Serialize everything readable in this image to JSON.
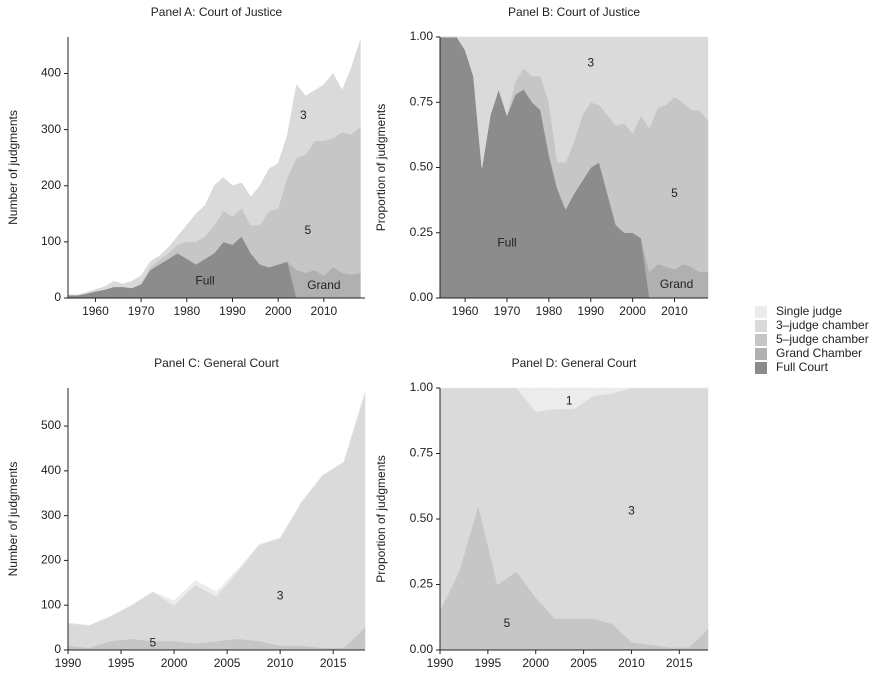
{
  "chart_data": [
    {
      "type": "stacked-area",
      "title": "Panel A: Court of Justice",
      "ylabel": "Number of judgments",
      "x": [
        1954,
        1956,
        1958,
        1960,
        1962,
        1964,
        1966,
        1968,
        1970,
        1972,
        1974,
        1976,
        1978,
        1980,
        1982,
        1984,
        1986,
        1988,
        1990,
        1992,
        1994,
        1996,
        1998,
        2000,
        2002,
        2004,
        2006,
        2008,
        2010,
        2012,
        2014,
        2016,
        2018
      ],
      "series": [
        {
          "color": "#8c8c8c",
          "values": [
            5,
            5,
            8,
            12,
            15,
            20,
            20,
            18,
            25,
            50,
            60,
            70,
            80,
            70,
            60,
            70,
            80,
            100,
            95,
            110,
            80,
            60,
            55,
            60,
            65,
            0,
            0,
            0,
            0,
            0,
            0,
            0,
            0
          ]
        },
        {
          "color": "#b0b0b0",
          "values": [
            0,
            0,
            0,
            0,
            0,
            0,
            0,
            0,
            0,
            0,
            0,
            0,
            0,
            0,
            0,
            0,
            0,
            0,
            0,
            0,
            0,
            0,
            0,
            0,
            0,
            50,
            45,
            50,
            40,
            55,
            45,
            42,
            45
          ]
        },
        {
          "color": "#c6c6c6",
          "values": [
            0,
            0,
            0,
            0,
            0,
            0,
            0,
            0,
            0,
            5,
            8,
            10,
            15,
            30,
            40,
            40,
            50,
            55,
            50,
            50,
            50,
            70,
            100,
            100,
            150,
            200,
            210,
            230,
            240,
            230,
            250,
            250,
            260
          ]
        },
        {
          "color": "#dadada",
          "values": [
            0,
            0,
            2,
            3,
            5,
            10,
            5,
            12,
            15,
            10,
            7,
            10,
            15,
            30,
            50,
            55,
            70,
            60,
            55,
            45,
            50,
            70,
            75,
            80,
            75,
            130,
            105,
            90,
            100,
            115,
            75,
            118,
            155
          ]
        }
      ],
      "xlim": [
        1954,
        2019
      ],
      "ylim": [
        0,
        465
      ],
      "xticks": [
        1960,
        1970,
        1980,
        1990,
        2000,
        2010
      ],
      "yticks": [
        0,
        100,
        200,
        300,
        400
      ],
      "annotations": [
        "3",
        "5",
        "Full",
        "Grand"
      ]
    },
    {
      "type": "stacked-area",
      "title": "Panel B: Court of Justice",
      "ylabel": "Proportion of judgments",
      "x": [
        1954,
        1956,
        1958,
        1960,
        1962,
        1964,
        1966,
        1968,
        1970,
        1972,
        1974,
        1976,
        1978,
        1980,
        1982,
        1984,
        1986,
        1988,
        1990,
        1992,
        1994,
        1996,
        1998,
        2000,
        2002,
        2004,
        2006,
        2008,
        2010,
        2012,
        2014,
        2016,
        2018
      ],
      "series": [
        {
          "color": "#8c8c8c",
          "values": [
            1,
            1,
            1,
            0.95,
            0.85,
            0.5,
            0.7,
            0.8,
            0.7,
            0.78,
            0.8,
            0.75,
            0.72,
            0.55,
            0.42,
            0.34,
            0.4,
            0.45,
            0.5,
            0.52,
            0.4,
            0.28,
            0.25,
            0.25,
            0.23,
            0,
            0,
            0,
            0,
            0,
            0,
            0,
            0
          ]
        },
        {
          "color": "#b0b0b0",
          "values": [
            0,
            0,
            0,
            0,
            0,
            0,
            0,
            0,
            0,
            0,
            0,
            0,
            0,
            0,
            0,
            0,
            0,
            0,
            0,
            0,
            0,
            0,
            0,
            0,
            0,
            0.1,
            0.13,
            0.12,
            0.11,
            0.13,
            0.12,
            0.1,
            0.1
          ]
        },
        {
          "color": "#c6c6c6",
          "values": [
            0,
            0,
            0,
            0,
            0,
            0,
            0,
            0,
            0,
            0.05,
            0.08,
            0.1,
            0.13,
            0.2,
            0.1,
            0.18,
            0.2,
            0.25,
            0.25,
            0.22,
            0.3,
            0.38,
            0.42,
            0.38,
            0.47,
            0.55,
            0.6,
            0.62,
            0.66,
            0.62,
            0.6,
            0.62,
            0.58
          ]
        },
        {
          "color": "#dadada",
          "values": [
            0,
            0,
            0,
            0.05,
            0.15,
            0.5,
            0.3,
            0.2,
            0.3,
            0.17,
            0.12,
            0.15,
            0.15,
            0.25,
            0.48,
            0.48,
            0.4,
            0.3,
            0.25,
            0.26,
            0.3,
            0.34,
            0.33,
            0.37,
            0.3,
            0.35,
            0.27,
            0.26,
            0.23,
            0.25,
            0.28,
            0.28,
            0.32
          ]
        }
      ],
      "xlim": [
        1954,
        2018
      ],
      "ylim": [
        0,
        1
      ],
      "xticks": [
        1960,
        1970,
        1980,
        1990,
        2000,
        2010
      ],
      "yticks": [
        {
          "value": 0,
          "label": "0.00"
        },
        {
          "value": 0.25,
          "label": "0.25"
        },
        {
          "value": 0.5,
          "label": "0.50"
        },
        {
          "value": 0.75,
          "label": "0.75"
        },
        {
          "value": 1,
          "label": "1.00"
        }
      ],
      "annotations": [
        "3",
        "5",
        "Full",
        "Grand"
      ]
    },
    {
      "type": "stacked-area",
      "title": "Panel C: General Court",
      "ylabel": "Number of judgments",
      "x": [
        1990,
        1992,
        1994,
        1996,
        1998,
        2000,
        2002,
        2004,
        2006,
        2008,
        2010,
        2012,
        2014,
        2016,
        2018
      ],
      "series": [
        {
          "color": "#c6c6c6",
          "values": [
            10,
            5,
            20,
            25,
            20,
            20,
            15,
            20,
            25,
            20,
            10,
            10,
            5,
            5,
            50
          ]
        },
        {
          "color": "#dadada",
          "values": [
            50,
            50,
            55,
            75,
            110,
            80,
            130,
            100,
            150,
            215,
            240,
            320,
            385,
            415,
            525
          ]
        },
        {
          "color": "#ececec",
          "values": [
            0,
            0,
            0,
            0,
            0,
            10,
            10,
            10,
            5,
            0,
            0,
            0,
            0,
            0,
            0
          ]
        }
      ],
      "xlim": [
        1990,
        2018
      ],
      "ylim": [
        0,
        585
      ],
      "xticks": [
        1990,
        1995,
        2000,
        2005,
        2010,
        2015
      ],
      "yticks": [
        0,
        100,
        200,
        300,
        400,
        500
      ],
      "annotations": [
        "3",
        "5"
      ]
    },
    {
      "type": "stacked-area",
      "title": "Panel D: General Court",
      "ylabel": "Proportion of judgments",
      "x": [
        1990,
        1992,
        1994,
        1996,
        1998,
        2000,
        2002,
        2004,
        2006,
        2008,
        2010,
        2012,
        2014,
        2016,
        2018
      ],
      "series": [
        {
          "color": "#c6c6c6",
          "values": [
            0.15,
            0.3,
            0.55,
            0.25,
            0.3,
            0.2,
            0.12,
            0.12,
            0.12,
            0.1,
            0.03,
            0.02,
            0.01,
            0.01,
            0.08
          ]
        },
        {
          "color": "#dadada",
          "values": [
            0.85,
            0.7,
            0.45,
            0.75,
            0.7,
            0.71,
            0.8,
            0.8,
            0.85,
            0.88,
            0.97,
            0.98,
            0.99,
            0.99,
            0.92
          ]
        },
        {
          "color": "#ececec",
          "values": [
            0,
            0,
            0,
            0,
            0,
            0.09,
            0.08,
            0.08,
            0.03,
            0.02,
            0,
            0,
            0,
            0,
            0
          ]
        }
      ],
      "xlim": [
        1990,
        2018
      ],
      "ylim": [
        0,
        1
      ],
      "xticks": [
        1990,
        1995,
        2000,
        2005,
        2010,
        2015
      ],
      "yticks": [
        {
          "value": 0,
          "label": "0.00"
        },
        {
          "value": 0.25,
          "label": "0.25"
        },
        {
          "value": 0.5,
          "label": "0.50"
        },
        {
          "value": 0.75,
          "label": "0.75"
        },
        {
          "value": 1,
          "label": "1.00"
        }
      ],
      "annotations": [
        "1",
        "3",
        "5"
      ]
    }
  ],
  "legend": [
    {
      "name": "Single judge",
      "color": "#ececec"
    },
    {
      "name": "3–judge chamber",
      "color": "#dadada"
    },
    {
      "name": "5–judge chamber",
      "color": "#c6c6c6"
    },
    {
      "name": "Grand Chamber",
      "color": "#b0b0b0"
    },
    {
      "name": "Full Court",
      "color": "#8c8c8c"
    }
  ]
}
